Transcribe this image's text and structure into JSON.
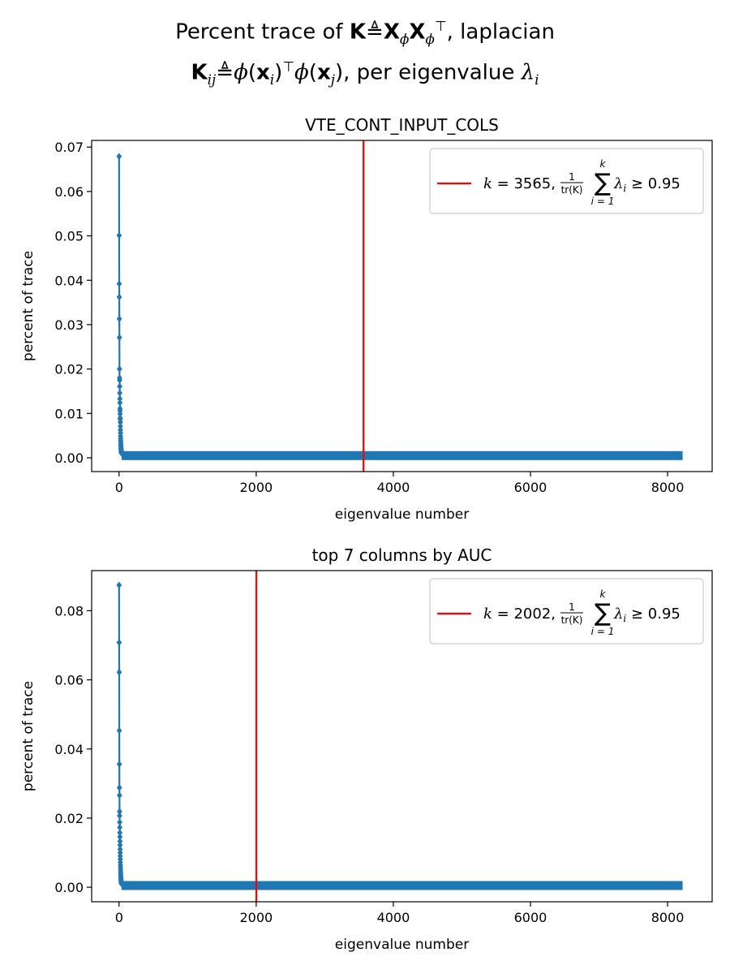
{
  "figure": {
    "suptitle_line1": {
      "prefix": "Percent trace of ",
      "K": "K",
      "eqsym": "≜",
      "X1": "X",
      "sub1": "ϕ",
      "X2": "X",
      "sub2": "ϕ",
      "sup2": "⊤",
      "suffix": ", laplacian"
    },
    "suptitle_line2": {
      "K": "K",
      "Ksub": "ij",
      "eqsym": "≜",
      "phi1": "ϕ",
      "arg1_open": "(",
      "x1": "x",
      "x1sub": "i",
      "arg1_close": ")",
      "top": "⊤",
      "phi2": "ϕ",
      "arg2_open": "(",
      "x2": "x",
      "x2sub": "j",
      "arg2_close": ")",
      "middle": ", per eigenvalue ",
      "lambda": "λ",
      "lambda_sub": "i"
    }
  },
  "chart_data": [
    {
      "type": "line",
      "title": "VTE_CONT_INPUT_COLS",
      "xlabel": "eigenvalue number",
      "ylabel": "percent of trace",
      "xlim": [
        -400,
        8650
      ],
      "ylim": [
        -0.0031,
        0.0715
      ],
      "xticks": [
        0,
        2000,
        4000,
        6000,
        8000
      ],
      "xtick_labels": [
        "0",
        "2000",
        "4000",
        "6000",
        "8000"
      ],
      "yticks": [
        0,
        0.01,
        0.02,
        0.03,
        0.04,
        0.05,
        0.06,
        0.07
      ],
      "ytick_labels": [
        "0.00",
        "0.01",
        "0.02",
        "0.03",
        "0.04",
        "0.05",
        "0.06",
        "0.07"
      ],
      "series_color": "#1f77b4",
      "marker": "diamond",
      "n_eigenvalues": 8220,
      "leading_values": [
        0.0679,
        0.0501,
        0.0392,
        0.0362,
        0.0313,
        0.0271,
        0.02,
        0.018,
        0.0175,
        0.0161,
        0.0146,
        0.0133,
        0.0124,
        0.0111,
        0.0106,
        0.0099,
        0.009,
        0.0087,
        0.008,
        0.0071,
        0.0063,
        0.0056,
        0.0049,
        0.0043,
        0.0038,
        0.0034,
        0.003,
        0.0027,
        0.0024,
        0.0021,
        0.0019,
        0.0017,
        0.0015,
        0.0014,
        0.0012,
        0.0011,
        0.001
      ],
      "tail": {
        "start_index": 37,
        "start_value": 0.001,
        "end_value": 0.0001
      },
      "threshold": {
        "x": 3565,
        "color": "#ff0000",
        "legend": {
          "k_label": "k",
          "k_value": "3565",
          "frac_num": "1",
          "frac_den": "tr(K)",
          "sum_top": "k",
          "sum_bottom": "i = 1",
          "lambda": "λ",
          "lambda_sub": "i",
          "relation": "≥ 0.95"
        },
        "legend_loc": "upper right"
      }
    },
    {
      "type": "line",
      "title": "top 7 columns by AUC",
      "xlabel": "eigenvalue number",
      "ylabel": "percent of trace",
      "xlim": [
        -400,
        8650
      ],
      "ylim": [
        -0.0042,
        0.0916
      ],
      "xticks": [
        0,
        2000,
        4000,
        6000,
        8000
      ],
      "xtick_labels": [
        "0",
        "2000",
        "4000",
        "6000",
        "8000"
      ],
      "yticks": [
        0,
        0.02,
        0.04,
        0.06,
        0.08
      ],
      "ytick_labels": [
        "0.00",
        "0.02",
        "0.04",
        "0.06",
        "0.08"
      ],
      "series_color": "#1f77b4",
      "marker": "diamond",
      "n_eigenvalues": 8220,
      "leading_values": [
        0.0874,
        0.0708,
        0.0622,
        0.0453,
        0.0356,
        0.0288,
        0.0266,
        0.0219,
        0.0207,
        0.0188,
        0.0173,
        0.0158,
        0.0146,
        0.0133,
        0.0122,
        0.011,
        0.01,
        0.009,
        0.0081,
        0.0072,
        0.0064,
        0.0057,
        0.005,
        0.0044,
        0.0039,
        0.0034,
        0.003,
        0.0026,
        0.0023,
        0.002,
        0.0018,
        0.0016,
        0.0014,
        0.0012,
        0.001
      ],
      "tail": {
        "start_index": 35,
        "start_value": 0.001,
        "end_value": 0.0001
      },
      "threshold": {
        "x": 2002,
        "color": "#ff0000",
        "legend": {
          "k_label": "k",
          "k_value": "2002",
          "frac_num": "1",
          "frac_den": "tr(K)",
          "sum_top": "k",
          "sum_bottom": "i = 1",
          "lambda": "λ",
          "lambda_sub": "i",
          "relation": "≥ 0.95"
        },
        "legend_loc": "upper right"
      }
    }
  ]
}
